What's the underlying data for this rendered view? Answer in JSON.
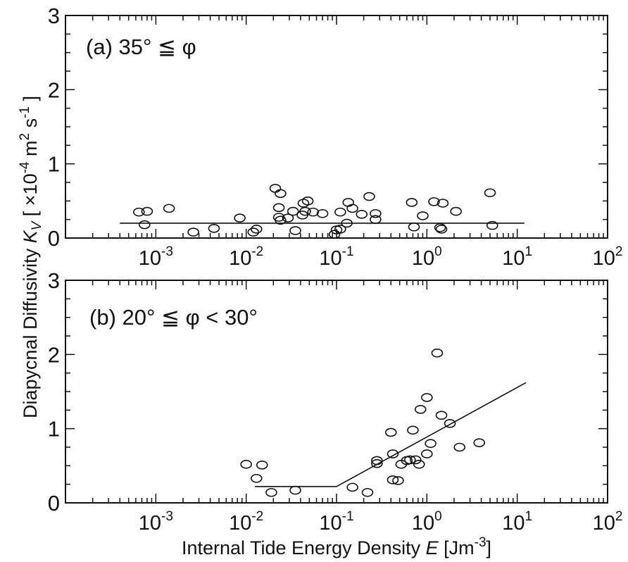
{
  "figure": {
    "ylabel_text": "Diapycnal Diffusivity ",
    "ylabel_symbol": "K",
    "ylabel_subscript": "V",
    "ylabel_units": " [ ×10",
    "ylabel_exp1": "-4",
    "ylabel_mid": " m",
    "ylabel_exp2": "2",
    "ylabel_mid2": " s",
    "ylabel_exp3": "-1",
    "ylabel_end": " ]",
    "xlabel_text": "Internal Tide Energy Density ",
    "xlabel_symbol": "E",
    "xlabel_units": " [Jm",
    "xlabel_exp": "-3",
    "xlabel_end": "]"
  },
  "chart_data": [
    {
      "type": "scatter",
      "panel_label": "(a) 35° ≦ φ",
      "x_scale": "log",
      "xlim": [
        0.0001,
        100
      ],
      "ylim": [
        0,
        3
      ],
      "x_ticks": [
        {
          "base": "10",
          "exp": "-3",
          "value": 0.001
        },
        {
          "base": "10",
          "exp": "-2",
          "value": 0.01
        },
        {
          "base": "10",
          "exp": "-1",
          "value": 0.1
        },
        {
          "base": "10",
          "exp": "0",
          "value": 1
        },
        {
          "base": "10",
          "exp": "1",
          "value": 10
        },
        {
          "base": "10",
          "exp": "2",
          "value": 100
        }
      ],
      "y_ticks": [
        "0",
        "1",
        "2",
        "3"
      ],
      "points": [
        [
          0.00065,
          0.35
        ],
        [
          0.0008,
          0.36
        ],
        [
          0.00075,
          0.18
        ],
        [
          0.0014,
          0.4
        ],
        [
          0.0026,
          0.08
        ],
        [
          0.0044,
          0.13
        ],
        [
          0.0085,
          0.27
        ],
        [
          0.012,
          0.08
        ],
        [
          0.013,
          0.12
        ],
        [
          0.021,
          0.67
        ],
        [
          0.024,
          0.6
        ],
        [
          0.023,
          0.41
        ],
        [
          0.023,
          0.28
        ],
        [
          0.024,
          0.24
        ],
        [
          0.029,
          0.27
        ],
        [
          0.033,
          0.36
        ],
        [
          0.035,
          0.1
        ],
        [
          0.043,
          0.47
        ],
        [
          0.048,
          0.5
        ],
        [
          0.045,
          0.36
        ],
        [
          0.042,
          0.31
        ],
        [
          0.055,
          0.35
        ],
        [
          0.07,
          0.33
        ],
        [
          0.095,
          0.05
        ],
        [
          0.1,
          0.11
        ],
        [
          0.11,
          0.12
        ],
        [
          0.11,
          0.35
        ],
        [
          0.13,
          0.2
        ],
        [
          0.135,
          0.48
        ],
        [
          0.15,
          0.4
        ],
        [
          0.19,
          0.32
        ],
        [
          0.23,
          0.56
        ],
        [
          0.27,
          0.25
        ],
        [
          0.27,
          0.33
        ],
        [
          0.68,
          0.48
        ],
        [
          0.72,
          0.15
        ],
        [
          0.9,
          0.3
        ],
        [
          1.2,
          0.49
        ],
        [
          1.4,
          0.14
        ],
        [
          1.45,
          0.12
        ],
        [
          1.5,
          0.47
        ],
        [
          2.1,
          0.36
        ],
        [
          5.0,
          0.61
        ],
        [
          5.3,
          0.17
        ]
      ],
      "fit_line": [
        [
          0.0004,
          0.2
        ],
        [
          12,
          0.2
        ]
      ]
    },
    {
      "type": "scatter",
      "panel_label": "(b) 20° ≦ φ < 30°",
      "x_scale": "log",
      "xlim": [
        0.0001,
        100
      ],
      "ylim": [
        0,
        3
      ],
      "x_ticks": [
        {
          "base": "10",
          "exp": "-3",
          "value": 0.001
        },
        {
          "base": "10",
          "exp": "-2",
          "value": 0.01
        },
        {
          "base": "10",
          "exp": "-1",
          "value": 0.1
        },
        {
          "base": "10",
          "exp": "0",
          "value": 1
        },
        {
          "base": "10",
          "exp": "1",
          "value": 10
        },
        {
          "base": "10",
          "exp": "2",
          "value": 100
        }
      ],
      "y_ticks": [
        "0",
        "1",
        "2",
        "3"
      ],
      "points": [
        [
          0.01,
          0.52
        ],
        [
          0.013,
          0.33
        ],
        [
          0.015,
          0.51
        ],
        [
          0.019,
          0.14
        ],
        [
          0.035,
          0.17
        ],
        [
          0.22,
          0.14
        ],
        [
          0.15,
          0.21
        ],
        [
          0.28,
          0.57
        ],
        [
          0.28,
          0.53
        ],
        [
          0.4,
          0.95
        ],
        [
          0.42,
          0.66
        ],
        [
          0.42,
          0.31
        ],
        [
          0.48,
          0.3
        ],
        [
          0.52,
          0.52
        ],
        [
          0.6,
          0.57
        ],
        [
          0.65,
          0.58
        ],
        [
          0.7,
          0.98
        ],
        [
          0.75,
          0.58
        ],
        [
          0.82,
          0.52
        ],
        [
          0.85,
          1.26
        ],
        [
          1.0,
          1.42
        ],
        [
          1.0,
          0.66
        ],
        [
          1.1,
          0.8
        ],
        [
          1.3,
          2.02
        ],
        [
          1.45,
          1.18
        ],
        [
          1.8,
          1.07
        ],
        [
          2.3,
          0.75
        ],
        [
          3.8,
          0.81
        ]
      ],
      "fit_line": [
        [
          0.0125,
          0.22
        ],
        [
          0.1,
          0.22
        ],
        [
          12.5,
          1.62
        ]
      ]
    }
  ]
}
